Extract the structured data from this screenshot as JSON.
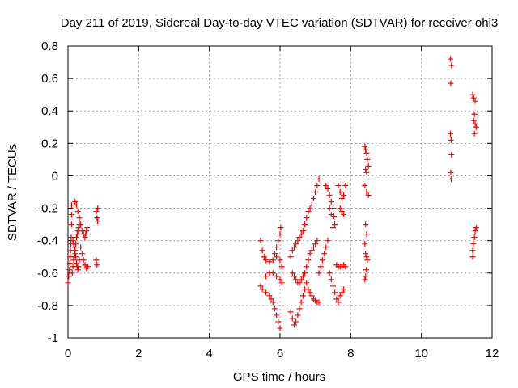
{
  "chart_data": {
    "type": "scatter",
    "title": "Day 211 of 2019, Sidereal Day-to-day VTEC variation (SDTVAR) for receiver ohi3",
    "xlabel": "GPS time / hours",
    "ylabel": "SDTVAR / TECUs",
    "xlim": [
      0,
      12
    ],
    "ylim": [
      -1,
      0.8
    ],
    "xticks": [
      0,
      2,
      4,
      6,
      8,
      10,
      12
    ],
    "xtick_labels": [
      "0",
      "2",
      "4",
      "6",
      "8",
      "10",
      "12"
    ],
    "yticks": [
      -1,
      -0.8,
      -0.6,
      -0.4,
      -0.2,
      0,
      0.2,
      0.4,
      0.6,
      0.8
    ],
    "ytick_labels": [
      "-1",
      "-0.8",
      "-0.6",
      "-0.4",
      "-0.2",
      "0",
      "0.2",
      "0.4",
      "0.6",
      "0.8"
    ],
    "grid": true,
    "marker": "+",
    "color": "#ff0000",
    "series": [
      {
        "name": "SDTVAR",
        "points": [
          [
            0.0,
            -0.66
          ],
          [
            0.02,
            -0.62
          ],
          [
            0.04,
            -0.58
          ],
          [
            0.05,
            -0.54
          ],
          [
            0.06,
            -0.5
          ],
          [
            0.07,
            -0.46
          ],
          [
            0.08,
            -0.42
          ],
          [
            0.09,
            -0.38
          ],
          [
            0.1,
            -0.3
          ],
          [
            0.1,
            -0.24
          ],
          [
            0.1,
            -0.18
          ],
          [
            0.12,
            -0.6
          ],
          [
            0.14,
            -0.56
          ],
          [
            0.16,
            -0.52
          ],
          [
            0.18,
            -0.5
          ],
          [
            0.2,
            -0.48
          ],
          [
            0.22,
            -0.5
          ],
          [
            0.24,
            -0.54
          ],
          [
            0.26,
            -0.56
          ],
          [
            0.28,
            -0.58
          ],
          [
            0.3,
            -0.56
          ],
          [
            0.32,
            -0.52
          ],
          [
            0.14,
            -0.4
          ],
          [
            0.16,
            -0.42
          ],
          [
            0.18,
            -0.44
          ],
          [
            0.2,
            -0.46
          ],
          [
            0.22,
            -0.42
          ],
          [
            0.24,
            -0.38
          ],
          [
            0.26,
            -0.36
          ],
          [
            0.28,
            -0.34
          ],
          [
            0.3,
            -0.32
          ],
          [
            0.32,
            -0.3
          ],
          [
            0.2,
            -0.16
          ],
          [
            0.24,
            -0.18
          ],
          [
            0.28,
            -0.22
          ],
          [
            0.32,
            -0.26
          ],
          [
            0.36,
            -0.3
          ],
          [
            0.4,
            -0.34
          ],
          [
            0.44,
            -0.36
          ],
          [
            0.48,
            -0.38
          ],
          [
            0.5,
            -0.36
          ],
          [
            0.52,
            -0.34
          ],
          [
            0.54,
            -0.32
          ],
          [
            0.36,
            -0.44
          ],
          [
            0.4,
            -0.48
          ],
          [
            0.44,
            -0.52
          ],
          [
            0.48,
            -0.55
          ],
          [
            0.52,
            -0.57
          ],
          [
            0.56,
            -0.56
          ],
          [
            0.8,
            -0.52
          ],
          [
            0.82,
            -0.55
          ],
          [
            0.8,
            -0.22
          ],
          [
            0.82,
            -0.26
          ],
          [
            0.84,
            -0.2
          ],
          [
            0.84,
            -0.28
          ],
          [
            5.45,
            -0.4
          ],
          [
            5.5,
            -0.46
          ],
          [
            5.55,
            -0.5
          ],
          [
            5.6,
            -0.52
          ],
          [
            5.7,
            -0.53
          ],
          [
            5.8,
            -0.52
          ],
          [
            5.9,
            -0.5
          ],
          [
            6.0,
            -0.52
          ],
          [
            6.05,
            -0.56
          ],
          [
            5.45,
            -0.68
          ],
          [
            5.5,
            -0.7
          ],
          [
            5.6,
            -0.72
          ],
          [
            5.7,
            -0.74
          ],
          [
            5.75,
            -0.76
          ],
          [
            5.8,
            -0.78
          ],
          [
            5.85,
            -0.82
          ],
          [
            5.9,
            -0.86
          ],
          [
            5.95,
            -0.9
          ],
          [
            6.0,
            -0.94
          ],
          [
            5.6,
            -0.62
          ],
          [
            5.7,
            -0.6
          ],
          [
            5.8,
            -0.6
          ],
          [
            5.9,
            -0.62
          ],
          [
            6.0,
            -0.64
          ],
          [
            6.05,
            -0.66
          ],
          [
            5.85,
            -0.48
          ],
          [
            5.9,
            -0.44
          ],
          [
            5.95,
            -0.4
          ],
          [
            6.0,
            -0.36
          ],
          [
            6.02,
            -0.32
          ],
          [
            6.3,
            -0.84
          ],
          [
            6.35,
            -0.88
          ],
          [
            6.4,
            -0.92
          ],
          [
            6.45,
            -0.9
          ],
          [
            6.5,
            -0.86
          ],
          [
            6.55,
            -0.82
          ],
          [
            6.6,
            -0.78
          ],
          [
            6.65,
            -0.74
          ],
          [
            6.7,
            -0.7
          ],
          [
            6.75,
            -0.66
          ],
          [
            6.3,
            -0.5
          ],
          [
            6.35,
            -0.46
          ],
          [
            6.4,
            -0.44
          ],
          [
            6.45,
            -0.42
          ],
          [
            6.5,
            -0.4
          ],
          [
            6.55,
            -0.38
          ],
          [
            6.6,
            -0.36
          ],
          [
            6.65,
            -0.34
          ],
          [
            6.7,
            -0.3
          ],
          [
            6.75,
            -0.26
          ],
          [
            6.8,
            -0.22
          ],
          [
            6.85,
            -0.2
          ],
          [
            6.9,
            -0.18
          ],
          [
            6.95,
            -0.14
          ],
          [
            7.0,
            -0.1
          ],
          [
            7.05,
            -0.06
          ],
          [
            7.1,
            -0.02
          ],
          [
            6.35,
            -0.6
          ],
          [
            6.4,
            -0.62
          ],
          [
            6.45,
            -0.64
          ],
          [
            6.5,
            -0.66
          ],
          [
            6.55,
            -0.66
          ],
          [
            6.6,
            -0.64
          ],
          [
            6.65,
            -0.62
          ],
          [
            6.7,
            -0.6
          ],
          [
            6.75,
            -0.56
          ],
          [
            6.8,
            -0.52
          ],
          [
            6.85,
            -0.48
          ],
          [
            6.9,
            -0.46
          ],
          [
            6.95,
            -0.44
          ],
          [
            7.0,
            -0.42
          ],
          [
            7.05,
            -0.4
          ],
          [
            6.8,
            -0.7
          ],
          [
            6.85,
            -0.72
          ],
          [
            6.9,
            -0.74
          ],
          [
            6.95,
            -0.76
          ],
          [
            7.0,
            -0.77
          ],
          [
            7.05,
            -0.78
          ],
          [
            7.1,
            -0.78
          ],
          [
            7.1,
            -0.6
          ],
          [
            7.15,
            -0.56
          ],
          [
            7.2,
            -0.52
          ],
          [
            7.25,
            -0.48
          ],
          [
            7.3,
            -0.44
          ],
          [
            7.35,
            -0.4
          ],
          [
            7.3,
            -0.06
          ],
          [
            7.35,
            -0.08
          ],
          [
            7.4,
            -0.12
          ],
          [
            7.45,
            -0.16
          ],
          [
            7.5,
            -0.2
          ],
          [
            7.52,
            -0.25
          ],
          [
            7.55,
            -0.3
          ],
          [
            7.5,
            -0.32
          ],
          [
            7.45,
            -0.24
          ],
          [
            7.4,
            -0.2
          ],
          [
            7.4,
            -0.6
          ],
          [
            7.45,
            -0.64
          ],
          [
            7.5,
            -0.68
          ],
          [
            7.55,
            -0.72
          ],
          [
            7.6,
            -0.76
          ],
          [
            7.65,
            -0.78
          ],
          [
            7.7,
            -0.74
          ],
          [
            7.75,
            -0.72
          ],
          [
            7.8,
            -0.7
          ],
          [
            7.6,
            -0.55
          ],
          [
            7.65,
            -0.56
          ],
          [
            7.7,
            -0.56
          ],
          [
            7.75,
            -0.56
          ],
          [
            7.8,
            -0.55
          ],
          [
            7.85,
            -0.56
          ],
          [
            7.65,
            -0.06
          ],
          [
            7.7,
            -0.1
          ],
          [
            7.75,
            -0.14
          ],
          [
            7.8,
            -0.12
          ],
          [
            7.85,
            -0.06
          ],
          [
            7.7,
            -0.2
          ],
          [
            7.75,
            -0.22
          ],
          [
            7.8,
            -0.24
          ],
          [
            8.4,
            0.18
          ],
          [
            8.42,
            0.16
          ],
          [
            8.45,
            0.14
          ],
          [
            8.47,
            0.1
          ],
          [
            8.5,
            0.06
          ],
          [
            8.42,
            0.04
          ],
          [
            8.45,
            0.02
          ],
          [
            8.4,
            -0.06
          ],
          [
            8.45,
            -0.1
          ],
          [
            8.5,
            -0.12
          ],
          [
            8.42,
            -0.3
          ],
          [
            8.45,
            -0.36
          ],
          [
            8.4,
            -0.42
          ],
          [
            8.42,
            -0.48
          ],
          [
            8.45,
            -0.5
          ],
          [
            8.47,
            -0.52
          ],
          [
            8.44,
            -0.58
          ],
          [
            8.42,
            -0.62
          ],
          [
            8.4,
            -0.64
          ],
          [
            10.82,
            0.72
          ],
          [
            10.85,
            0.68
          ],
          [
            10.83,
            0.57
          ],
          [
            10.82,
            0.26
          ],
          [
            10.84,
            0.22
          ],
          [
            10.85,
            0.13
          ],
          [
            10.83,
            0.02
          ],
          [
            10.84,
            -0.02
          ],
          [
            11.45,
            0.5
          ],
          [
            11.48,
            0.48
          ],
          [
            11.52,
            0.46
          ],
          [
            11.5,
            0.38
          ],
          [
            11.48,
            0.34
          ],
          [
            11.52,
            0.32
          ],
          [
            11.55,
            0.3
          ],
          [
            11.5,
            0.26
          ],
          [
            11.45,
            -0.46
          ],
          [
            11.47,
            -0.42
          ],
          [
            11.5,
            -0.38
          ],
          [
            11.52,
            -0.34
          ],
          [
            11.55,
            -0.32
          ],
          [
            11.45,
            -0.5
          ]
        ]
      }
    ]
  }
}
